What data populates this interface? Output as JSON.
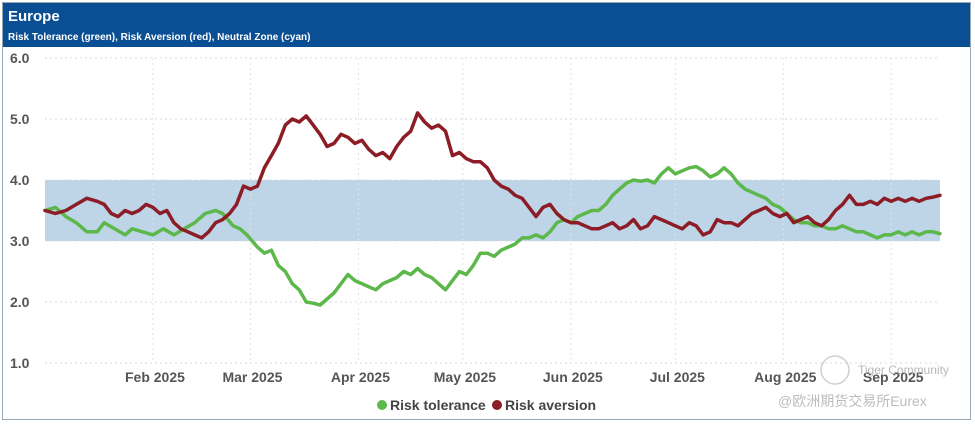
{
  "header": {
    "title": "Europe",
    "subtitle": "Risk Tolerance (green), Risk Aversion (red), Neutral Zone (cyan)"
  },
  "colors": {
    "header_bg": "#0a4f93",
    "tolerance": "#5cb84a",
    "aversion": "#8c1c25",
    "neutral_band": "#bed5e8"
  },
  "watermark": {
    "line1": "Tiger Community",
    "line2": "@欧洲期货交易所Eurex"
  },
  "chart_data": {
    "type": "line",
    "title": "Europe",
    "subtitle": "Risk Tolerance (green), Risk Aversion (red), Neutral Zone (cyan)",
    "ylim": [
      1.0,
      6.0
    ],
    "y_ticks": [
      {
        "value": 6.0,
        "label": "6.0"
      },
      {
        "value": 5.0,
        "label": "5.0"
      },
      {
        "value": 4.0,
        "label": "4.0"
      },
      {
        "value": 3.0,
        "label": "3.0"
      },
      {
        "value": 2.0,
        "label": "2.0"
      },
      {
        "value": 1.0,
        "label": "1.0"
      }
    ],
    "x_range_days": [
      0,
      257
    ],
    "x_ticks": [
      {
        "day": 31,
        "label": "Feb 2025"
      },
      {
        "day": 59,
        "label": "Mar 2025"
      },
      {
        "day": 90,
        "label": "Apr 2025"
      },
      {
        "day": 120,
        "label": "May 2025"
      },
      {
        "day": 151,
        "label": "Jun 2025"
      },
      {
        "day": 181,
        "label": "Jul 2025"
      },
      {
        "day": 212,
        "label": "Aug 2025"
      },
      {
        "day": 243,
        "label": "Sep 2025"
      }
    ],
    "neutral_zone": {
      "low": 3.0,
      "high": 4.0
    },
    "legend": [
      "Risk tolerance",
      "Risk aversion"
    ],
    "series": [
      {
        "name": "Risk tolerance",
        "color": "#5cb84a",
        "points": [
          [
            0,
            3.5
          ],
          [
            3,
            3.55
          ],
          [
            6,
            3.4
          ],
          [
            9,
            3.3
          ],
          [
            12,
            3.15
          ],
          [
            15,
            3.15
          ],
          [
            17,
            3.3
          ],
          [
            20,
            3.2
          ],
          [
            23,
            3.1
          ],
          [
            25,
            3.2
          ],
          [
            28,
            3.15
          ],
          [
            31,
            3.1
          ],
          [
            34,
            3.2
          ],
          [
            37,
            3.1
          ],
          [
            40,
            3.2
          ],
          [
            43,
            3.3
          ],
          [
            46,
            3.45
          ],
          [
            49,
            3.5
          ],
          [
            51,
            3.45
          ],
          [
            54,
            3.25
          ],
          [
            56,
            3.2
          ],
          [
            58,
            3.1
          ],
          [
            61,
            2.9
          ],
          [
            63,
            2.8
          ],
          [
            65,
            2.85
          ],
          [
            67,
            2.6
          ],
          [
            69,
            2.5
          ],
          [
            71,
            2.3
          ],
          [
            73,
            2.2
          ],
          [
            75,
            2.0
          ],
          [
            77,
            1.98
          ],
          [
            79,
            1.95
          ],
          [
            81,
            2.05
          ],
          [
            83,
            2.15
          ],
          [
            85,
            2.3
          ],
          [
            87,
            2.45
          ],
          [
            89,
            2.35
          ],
          [
            91,
            2.3
          ],
          [
            93,
            2.25
          ],
          [
            95,
            2.2
          ],
          [
            97,
            2.3
          ],
          [
            99,
            2.35
          ],
          [
            101,
            2.4
          ],
          [
            103,
            2.5
          ],
          [
            105,
            2.45
          ],
          [
            107,
            2.55
          ],
          [
            109,
            2.45
          ],
          [
            111,
            2.4
          ],
          [
            113,
            2.3
          ],
          [
            115,
            2.2
          ],
          [
            117,
            2.35
          ],
          [
            119,
            2.5
          ],
          [
            121,
            2.45
          ],
          [
            123,
            2.6
          ],
          [
            125,
            2.8
          ],
          [
            127,
            2.8
          ],
          [
            129,
            2.75
          ],
          [
            131,
            2.85
          ],
          [
            133,
            2.9
          ],
          [
            135,
            2.95
          ],
          [
            137,
            3.05
          ],
          [
            139,
            3.05
          ],
          [
            141,
            3.1
          ],
          [
            143,
            3.05
          ],
          [
            145,
            3.15
          ],
          [
            147,
            3.3
          ],
          [
            149,
            3.35
          ],
          [
            151,
            3.3
          ],
          [
            153,
            3.4
          ],
          [
            155,
            3.45
          ],
          [
            157,
            3.5
          ],
          [
            159,
            3.5
          ],
          [
            161,
            3.6
          ],
          [
            163,
            3.75
          ],
          [
            165,
            3.85
          ],
          [
            167,
            3.95
          ],
          [
            169,
            4.0
          ],
          [
            171,
            3.98
          ],
          [
            173,
            4.0
          ],
          [
            175,
            3.95
          ],
          [
            177,
            4.1
          ],
          [
            179,
            4.2
          ],
          [
            181,
            4.1
          ],
          [
            183,
            4.15
          ],
          [
            185,
            4.2
          ],
          [
            187,
            4.22
          ],
          [
            189,
            4.15
          ],
          [
            191,
            4.05
          ],
          [
            193,
            4.1
          ],
          [
            195,
            4.2
          ],
          [
            197,
            4.1
          ],
          [
            199,
            3.95
          ],
          [
            201,
            3.85
          ],
          [
            203,
            3.8
          ],
          [
            205,
            3.75
          ],
          [
            207,
            3.7
          ],
          [
            209,
            3.6
          ],
          [
            211,
            3.55
          ],
          [
            213,
            3.45
          ],
          [
            215,
            3.35
          ],
          [
            217,
            3.3
          ],
          [
            219,
            3.3
          ],
          [
            221,
            3.25
          ],
          [
            223,
            3.25
          ],
          [
            225,
            3.2
          ],
          [
            227,
            3.2
          ],
          [
            229,
            3.25
          ],
          [
            231,
            3.2
          ],
          [
            233,
            3.15
          ],
          [
            235,
            3.15
          ],
          [
            237,
            3.1
          ],
          [
            239,
            3.05
          ],
          [
            241,
            3.1
          ],
          [
            243,
            3.1
          ],
          [
            245,
            3.15
          ],
          [
            247,
            3.1
          ],
          [
            249,
            3.15
          ],
          [
            251,
            3.1
          ],
          [
            253,
            3.15
          ],
          [
            255,
            3.15
          ],
          [
            257,
            3.12
          ]
        ]
      },
      {
        "name": "Risk aversion",
        "color": "#8c1c25",
        "points": [
          [
            0,
            3.5
          ],
          [
            3,
            3.45
          ],
          [
            6,
            3.5
          ],
          [
            9,
            3.6
          ],
          [
            12,
            3.7
          ],
          [
            15,
            3.65
          ],
          [
            17,
            3.6
          ],
          [
            19,
            3.45
          ],
          [
            21,
            3.4
          ],
          [
            23,
            3.5
          ],
          [
            25,
            3.45
          ],
          [
            27,
            3.5
          ],
          [
            29,
            3.6
          ],
          [
            31,
            3.55
          ],
          [
            33,
            3.45
          ],
          [
            35,
            3.5
          ],
          [
            37,
            3.3
          ],
          [
            39,
            3.2
          ],
          [
            41,
            3.15
          ],
          [
            43,
            3.1
          ],
          [
            45,
            3.05
          ],
          [
            47,
            3.15
          ],
          [
            49,
            3.3
          ],
          [
            51,
            3.35
          ],
          [
            53,
            3.45
          ],
          [
            55,
            3.6
          ],
          [
            57,
            3.9
          ],
          [
            59,
            3.85
          ],
          [
            61,
            3.9
          ],
          [
            63,
            4.2
          ],
          [
            65,
            4.4
          ],
          [
            67,
            4.6
          ],
          [
            69,
            4.9
          ],
          [
            71,
            5.0
          ],
          [
            73,
            4.95
          ],
          [
            75,
            5.05
          ],
          [
            77,
            4.9
          ],
          [
            79,
            4.75
          ],
          [
            81,
            4.55
          ],
          [
            83,
            4.6
          ],
          [
            85,
            4.75
          ],
          [
            87,
            4.7
          ],
          [
            89,
            4.6
          ],
          [
            91,
            4.65
          ],
          [
            93,
            4.5
          ],
          [
            95,
            4.4
          ],
          [
            97,
            4.45
          ],
          [
            99,
            4.35
          ],
          [
            101,
            4.55
          ],
          [
            103,
            4.7
          ],
          [
            105,
            4.8
          ],
          [
            107,
            5.1
          ],
          [
            109,
            4.95
          ],
          [
            111,
            4.85
          ],
          [
            113,
            4.9
          ],
          [
            115,
            4.8
          ],
          [
            117,
            4.4
          ],
          [
            119,
            4.45
          ],
          [
            121,
            4.35
          ],
          [
            123,
            4.3
          ],
          [
            125,
            4.3
          ],
          [
            127,
            4.2
          ],
          [
            129,
            4.0
          ],
          [
            131,
            3.9
          ],
          [
            133,
            3.85
          ],
          [
            135,
            3.75
          ],
          [
            137,
            3.7
          ],
          [
            139,
            3.55
          ],
          [
            141,
            3.4
          ],
          [
            143,
            3.55
          ],
          [
            145,
            3.6
          ],
          [
            147,
            3.45
          ],
          [
            149,
            3.35
          ],
          [
            151,
            3.3
          ],
          [
            153,
            3.3
          ],
          [
            155,
            3.25
          ],
          [
            157,
            3.2
          ],
          [
            159,
            3.2
          ],
          [
            161,
            3.25
          ],
          [
            163,
            3.3
          ],
          [
            165,
            3.2
          ],
          [
            167,
            3.25
          ],
          [
            169,
            3.35
          ],
          [
            171,
            3.2
          ],
          [
            173,
            3.25
          ],
          [
            175,
            3.4
          ],
          [
            177,
            3.35
          ],
          [
            179,
            3.3
          ],
          [
            181,
            3.25
          ],
          [
            183,
            3.2
          ],
          [
            185,
            3.3
          ],
          [
            187,
            3.25
          ],
          [
            189,
            3.1
          ],
          [
            191,
            3.15
          ],
          [
            193,
            3.35
          ],
          [
            195,
            3.3
          ],
          [
            197,
            3.3
          ],
          [
            199,
            3.25
          ],
          [
            201,
            3.35
          ],
          [
            203,
            3.45
          ],
          [
            205,
            3.5
          ],
          [
            207,
            3.55
          ],
          [
            209,
            3.45
          ],
          [
            211,
            3.4
          ],
          [
            213,
            3.45
          ],
          [
            215,
            3.3
          ],
          [
            217,
            3.35
          ],
          [
            219,
            3.4
          ],
          [
            221,
            3.3
          ],
          [
            223,
            3.25
          ],
          [
            225,
            3.35
          ],
          [
            227,
            3.5
          ],
          [
            229,
            3.6
          ],
          [
            231,
            3.75
          ],
          [
            233,
            3.6
          ],
          [
            235,
            3.6
          ],
          [
            237,
            3.65
          ],
          [
            239,
            3.6
          ],
          [
            241,
            3.7
          ],
          [
            243,
            3.65
          ],
          [
            245,
            3.7
          ],
          [
            247,
            3.65
          ],
          [
            249,
            3.7
          ],
          [
            251,
            3.65
          ],
          [
            253,
            3.7
          ],
          [
            255,
            3.72
          ],
          [
            257,
            3.75
          ]
        ]
      }
    ]
  }
}
